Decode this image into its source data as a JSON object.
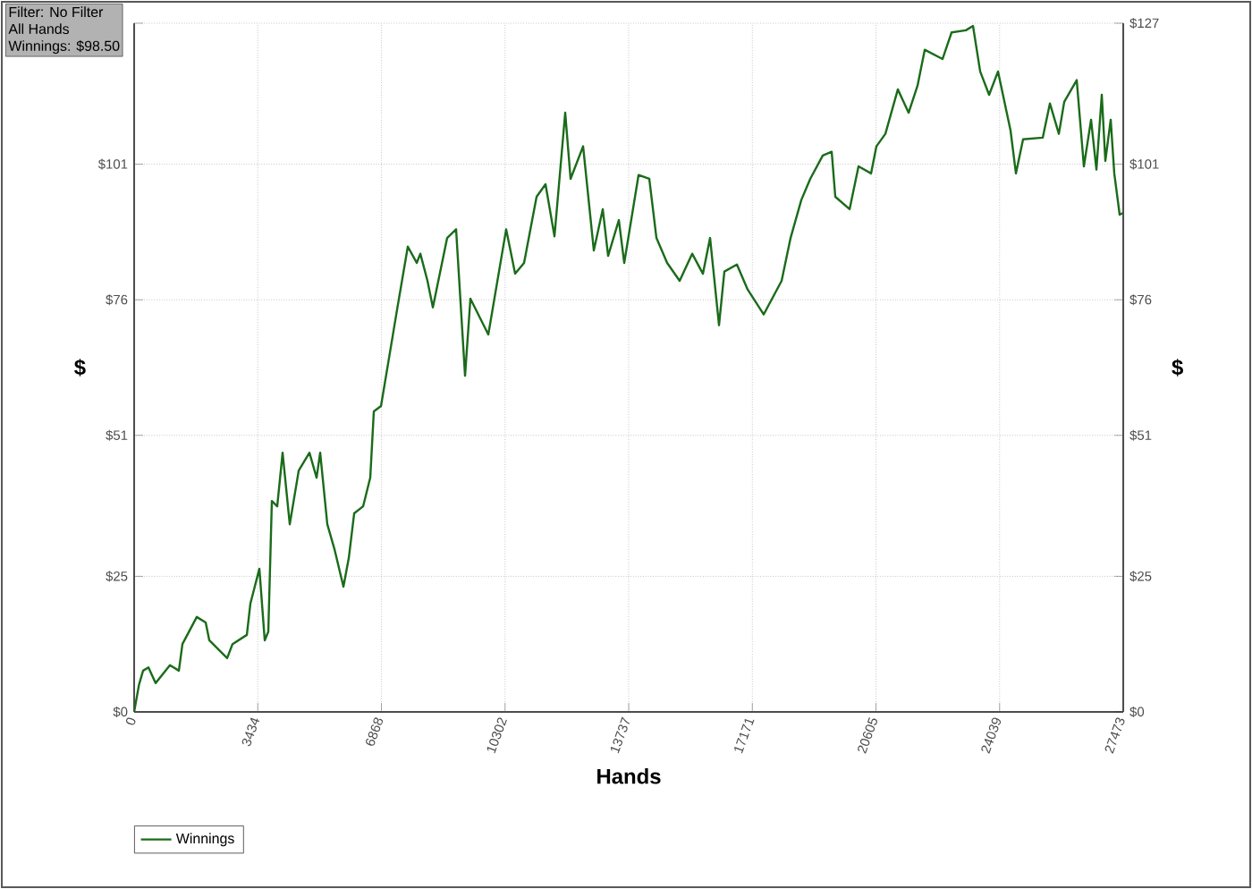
{
  "chart_data": {
    "type": "line",
    "xlabel": "Hands",
    "ylabel": "$",
    "y2label": "$",
    "annotations": [
      "Filter: No Filter",
      "All Hands",
      "Winnings: $98.50"
    ],
    "xlim": [
      0,
      27473
    ],
    "xticks": [
      0,
      3434,
      6868,
      10302,
      13737,
      17171,
      20605,
      24039,
      27473
    ],
    "ylim": [
      0,
      127
    ],
    "yticks": [
      {
        "value": 0,
        "label": "$0"
      },
      {
        "value": 25,
        "label": "$25"
      },
      {
        "value": 51,
        "label": "$51"
      },
      {
        "value": 76,
        "label": "$76"
      },
      {
        "value": 101,
        "label": "$101"
      },
      {
        "value": 127,
        "label": null
      }
    ],
    "y2lim": [
      0,
      127
    ],
    "y2ticks": [
      {
        "value": 0,
        "label": "$0"
      },
      {
        "value": 25,
        "label": "$25"
      },
      {
        "value": 51,
        "label": "$51"
      },
      {
        "value": 76,
        "label": "$76"
      },
      {
        "value": 101,
        "label": "$101"
      },
      {
        "value": 127,
        "label": "$127"
      }
    ],
    "grid": true,
    "legend": "bottom left",
    "marker": "none",
    "line_style": "solid",
    "x": [
      0,
      134,
      248,
      397,
      596,
      994,
      1242,
      1341,
      1739,
      1987,
      2087,
      2583,
      2732,
      3130,
      3229,
      3478,
      3627,
      3726,
      3825,
      3974,
      4123,
      4322,
      4571,
      4869,
      5067,
      5167,
      5365,
      5564,
      5813,
      5962,
      6111,
      6359,
      6558,
      6657,
      6856,
      7055,
      7303,
      7601,
      7849,
      7949,
      8147,
      8297,
      8694,
      8942,
      9191,
      9340,
      9837,
      10333,
      10582,
      10830,
      11178,
      11426,
      11675,
      11973,
      12122,
      12470,
      12768,
      13016,
      13165,
      13463,
      13612,
      14010,
      14308,
      14507,
      14805,
      15152,
      15500,
      15798,
      15997,
      16245,
      16394,
      16742,
      17040,
      17487,
      17984,
      18233,
      18531,
      18779,
      19127,
      19375,
      19475,
      19872,
      20120,
      20468,
      20617,
      20866,
      21213,
      21511,
      21760,
      21959,
      22455,
      22704,
      23101,
      23300,
      23499,
      23747,
      23995,
      24343,
      24492,
      24691,
      25237,
      25436,
      25685,
      25834,
      26181,
      26380,
      26579,
      26728,
      26877,
      26976,
      27125,
      27224,
      27373,
      27473
    ],
    "series": [
      {
        "name": "Winnings",
        "color": "#1a6b1a",
        "values": [
          0,
          5,
          7.6,
          8.2,
          5.3,
          8.6,
          7.6,
          12.5,
          17.5,
          16.5,
          13.2,
          9.9,
          12.5,
          14.2,
          20,
          26.4,
          13.2,
          14.8,
          38.9,
          37.9,
          47.8,
          34.6,
          44.5,
          47.8,
          43.2,
          47.8,
          34.6,
          30,
          23.1,
          28.4,
          36.6,
          37.9,
          43.2,
          55.4,
          56.4,
          64.3,
          74.2,
          85.8,
          82.8,
          84.5,
          79.5,
          74.6,
          87.4,
          89,
          62,
          76.2,
          69.6,
          89,
          80.8,
          82.8,
          95,
          97.3,
          87.7,
          110.5,
          98.3,
          104.3,
          85.1,
          92.7,
          84.1,
          90.7,
          82.8,
          99,
          98.3,
          87.4,
          82.8,
          79.5,
          84.5,
          80.8,
          87.4,
          71.3,
          81.2,
          82.5,
          77.9,
          73.3,
          79.5,
          87.4,
          94.4,
          98.3,
          102.6,
          103.3,
          95,
          92.7,
          100.6,
          99.3,
          104.3,
          106.6,
          114.8,
          110.5,
          115.5,
          122.1,
          120.4,
          125.3,
          125.7,
          126.5,
          118.1,
          113.8,
          118.1,
          107.2,
          99.3,
          105.6,
          105.9,
          112.2,
          106.6,
          112.5,
          116.5,
          100.6,
          109.2,
          100,
          113.8,
          101.6,
          109.2,
          99.3,
          91.7,
          92
        ]
      }
    ]
  }
}
